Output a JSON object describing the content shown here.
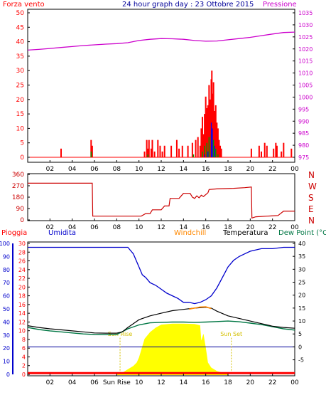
{
  "title": "24 hour graph day : 23 Ottobre 2015",
  "colors": {
    "background": "#ffffff",
    "frame": "#000000",
    "wind": "#ff0000",
    "pressure": "#cc00cc",
    "direction": "#cc0000",
    "rain": "#ff0000",
    "humidity": "#0000cc",
    "windchill": "#ff8800",
    "temperature": "#000000",
    "dewpoint": "#007744",
    "solar": "#ffff00",
    "sun_label": "#d4c000",
    "gust_green": "#009900",
    "gust_blue": "#0000ff"
  },
  "chart_data": [
    {
      "type": "bar",
      "panel": "wind_pressure",
      "left_label": "Forza vento",
      "right_label": "Pressione",
      "x_ticks": [
        "02",
        "04",
        "06",
        "08",
        "10",
        "12",
        "14",
        "16",
        "18",
        "20",
        "22",
        "00"
      ],
      "y_left_ticks": [
        "0",
        "5",
        "10",
        "15",
        "20",
        "25",
        "30",
        "35",
        "40",
        "45",
        "50"
      ],
      "y_left_range": [
        0,
        50
      ],
      "y_right_ticks": [
        "975",
        "980",
        "985",
        "990",
        "995",
        "1000",
        "1005",
        "1010",
        "1015",
        "1020",
        "1025",
        "1030",
        "1035"
      ],
      "y_right_range": [
        975,
        1035
      ],
      "wind_gusts": [
        [
          3.0,
          3
        ],
        [
          5.7,
          6
        ],
        [
          5.8,
          4
        ],
        [
          10.5,
          2
        ],
        [
          10.7,
          6
        ],
        [
          10.8,
          3
        ],
        [
          10.9,
          6
        ],
        [
          11.1,
          3
        ],
        [
          11.2,
          6
        ],
        [
          11.4,
          2
        ],
        [
          11.7,
          6
        ],
        [
          11.9,
          4
        ],
        [
          12.1,
          2
        ],
        [
          12.3,
          4
        ],
        [
          12.9,
          4
        ],
        [
          13.4,
          6
        ],
        [
          13.6,
          3
        ],
        [
          13.9,
          4
        ],
        [
          14.4,
          4
        ],
        [
          14.8,
          5
        ],
        [
          15.1,
          6
        ],
        [
          15.3,
          7
        ],
        [
          15.5,
          4
        ],
        [
          15.6,
          10
        ],
        [
          15.7,
          14
        ],
        [
          15.8,
          8
        ],
        [
          15.9,
          15
        ],
        [
          16.0,
          21
        ],
        [
          16.1,
          17
        ],
        [
          16.2,
          18
        ],
        [
          16.3,
          25
        ],
        [
          16.4,
          20
        ],
        [
          16.5,
          27
        ],
        [
          16.55,
          30
        ],
        [
          16.6,
          22
        ],
        [
          16.7,
          26
        ],
        [
          16.8,
          16
        ],
        [
          16.9,
          18
        ],
        [
          17.0,
          12
        ],
        [
          17.1,
          10
        ],
        [
          17.2,
          6
        ],
        [
          17.3,
          4
        ],
        [
          17.4,
          3
        ],
        [
          20.1,
          3
        ],
        [
          20.8,
          4
        ],
        [
          21.0,
          2
        ],
        [
          21.3,
          5
        ],
        [
          21.5,
          4
        ],
        [
          22.1,
          3
        ],
        [
          22.3,
          5
        ],
        [
          22.4,
          4
        ],
        [
          22.8,
          2
        ],
        [
          23.0,
          5
        ],
        [
          23.7,
          3
        ]
      ],
      "wind_mean": [
        [
          5.7,
          2
        ],
        [
          10.8,
          1
        ],
        [
          14.9,
          1
        ],
        [
          15.7,
          2
        ],
        [
          15.9,
          4
        ],
        [
          16.1,
          5
        ],
        [
          16.3,
          7
        ],
        [
          16.5,
          8
        ],
        [
          16.7,
          6
        ],
        [
          16.9,
          3
        ],
        [
          17.1,
          1
        ]
      ],
      "wind_mean_blue": [
        [
          15.9,
          1
        ],
        [
          16.2,
          2
        ],
        [
          16.5,
          12
        ],
        [
          16.6,
          10
        ],
        [
          16.8,
          4
        ]
      ],
      "pressure": [
        [
          0,
          1019.5
        ],
        [
          1,
          1019.8
        ],
        [
          2,
          1020.2
        ],
        [
          3,
          1020.6
        ],
        [
          4,
          1021.0
        ],
        [
          5,
          1021.4
        ],
        [
          6,
          1021.7
        ],
        [
          7,
          1022.0
        ],
        [
          8,
          1022.2
        ],
        [
          9,
          1022.6
        ],
        [
          10,
          1023.5
        ],
        [
          11,
          1024.0
        ],
        [
          12,
          1024.3
        ],
        [
          13,
          1024.2
        ],
        [
          14,
          1024.0
        ],
        [
          15,
          1023.5
        ],
        [
          16,
          1023.2
        ],
        [
          17,
          1023.3
        ],
        [
          18,
          1023.8
        ],
        [
          19,
          1024.3
        ],
        [
          20,
          1024.8
        ],
        [
          21,
          1025.5
        ],
        [
          22,
          1026.2
        ],
        [
          23,
          1026.8
        ],
        [
          24,
          1027.0
        ]
      ]
    },
    {
      "type": "line",
      "panel": "wind_direction",
      "x_ticks": [
        "02",
        "04",
        "06",
        "08",
        "10",
        "12",
        "14",
        "16",
        "18",
        "20",
        "22",
        "00"
      ],
      "y_ticks": [
        "0",
        "90",
        "180",
        "270",
        "360"
      ],
      "y_range": [
        0,
        360
      ],
      "compass_labels": [
        "N",
        "W",
        "S",
        "E",
        "N"
      ],
      "direction": [
        [
          0,
          290
        ],
        [
          5.8,
          290
        ],
        [
          5.85,
          30
        ],
        [
          10.2,
          30
        ],
        [
          10.6,
          50
        ],
        [
          11.0,
          50
        ],
        [
          11.2,
          80
        ],
        [
          12.0,
          80
        ],
        [
          12.3,
          110
        ],
        [
          12.7,
          110
        ],
        [
          12.8,
          170
        ],
        [
          13.6,
          170
        ],
        [
          13.8,
          190
        ],
        [
          14.0,
          210
        ],
        [
          14.6,
          210
        ],
        [
          14.8,
          180
        ],
        [
          15.0,
          170
        ],
        [
          15.2,
          190
        ],
        [
          15.4,
          175
        ],
        [
          15.6,
          195
        ],
        [
          15.8,
          185
        ],
        [
          16.0,
          200
        ],
        [
          16.2,
          215
        ],
        [
          16.3,
          240
        ],
        [
          17.0,
          245
        ],
        [
          18.5,
          250
        ],
        [
          19.5,
          255
        ],
        [
          20.1,
          260
        ],
        [
          20.15,
          15
        ],
        [
          20.5,
          25
        ],
        [
          21.5,
          30
        ],
        [
          22.5,
          35
        ],
        [
          23.0,
          70
        ],
        [
          24,
          70
        ]
      ]
    },
    {
      "type": "line",
      "panel": "temperature_humidity",
      "labels": [
        "Pioggia",
        "Umidita",
        "Windchill",
        "Temperatura",
        "Dew Point (°C"
      ],
      "x_ticks": [
        "02",
        "04",
        "06",
        "Sun Rise",
        "10",
        "12",
        "14",
        "16",
        "18",
        "20",
        "22",
        "00"
      ],
      "y_humidity_ticks": [
        "0",
        "10",
        "20",
        "30",
        "40",
        "50",
        "60",
        "70",
        "80",
        "90",
        "100"
      ],
      "y_humidity_range": [
        0,
        100
      ],
      "y_rain_ticks": [
        "0",
        "2",
        "4",
        "6",
        "8",
        "10",
        "12",
        "14",
        "16",
        "18",
        "20",
        "22",
        "24",
        "26",
        "28",
        "30"
      ],
      "y_rain_range": [
        0,
        30
      ],
      "y_temp_ticks": [
        "-5",
        "0",
        "5",
        "10",
        "15",
        "20",
        "25",
        "30",
        "35",
        "40"
      ],
      "y_temp_range": [
        -5,
        40
      ],
      "sun_rise_label": "Sun Rise",
      "sun_set_label": "Sun Set",
      "sun_rise_hour": 8.3,
      "sun_set_hour": 18.3,
      "humidity": [
        [
          0,
          97
        ],
        [
          1,
          97
        ],
        [
          2,
          97
        ],
        [
          3,
          97
        ],
        [
          4,
          97
        ],
        [
          5,
          97
        ],
        [
          6,
          97
        ],
        [
          7,
          97
        ],
        [
          8,
          97
        ],
        [
          9,
          97
        ],
        [
          9.5,
          92
        ],
        [
          10,
          82
        ],
        [
          10.3,
          76
        ],
        [
          10.6,
          74
        ],
        [
          11,
          70
        ],
        [
          11.5,
          68
        ],
        [
          12,
          65
        ],
        [
          12.5,
          62
        ],
        [
          13,
          60
        ],
        [
          13.5,
          58
        ],
        [
          14,
          55
        ],
        [
          14.5,
          55
        ],
        [
          15,
          54
        ],
        [
          15.5,
          55
        ],
        [
          16,
          57
        ],
        [
          16.5,
          60
        ],
        [
          17,
          66
        ],
        [
          17.5,
          74
        ],
        [
          18,
          82
        ],
        [
          18.5,
          87
        ],
        [
          19,
          90
        ],
        [
          19.5,
          92
        ],
        [
          20,
          94
        ],
        [
          21,
          96
        ],
        [
          22,
          96
        ],
        [
          23,
          97
        ],
        [
          24,
          97
        ]
      ],
      "temperature": [
        [
          0,
          8.2
        ],
        [
          1,
          7.5
        ],
        [
          2,
          7.0
        ],
        [
          3,
          6.6
        ],
        [
          4,
          6.2
        ],
        [
          5,
          5.8
        ],
        [
          6,
          5.4
        ],
        [
          7,
          5.3
        ],
        [
          8,
          5.3
        ],
        [
          8.5,
          5.8
        ],
        [
          9,
          7.5
        ],
        [
          9.5,
          9.0
        ],
        [
          10,
          10.5
        ],
        [
          11,
          12.0
        ],
        [
          12,
          13.0
        ],
        [
          13,
          14.0
        ],
        [
          14,
          14.5
        ],
        [
          15,
          15.0
        ],
        [
          16,
          15.3
        ],
        [
          16.5,
          15.0
        ],
        [
          17,
          13.8
        ],
        [
          18,
          12.0
        ],
        [
          19,
          11.0
        ],
        [
          20,
          10.0
        ],
        [
          20.5,
          9.5
        ],
        [
          21,
          9.0
        ],
        [
          22,
          8.0
        ],
        [
          23,
          7.5
        ],
        [
          24,
          7.2
        ]
      ],
      "dewpoint": [
        [
          0,
          7.5
        ],
        [
          1,
          6.7
        ],
        [
          2,
          6.2
        ],
        [
          3,
          5.8
        ],
        [
          4,
          5.4
        ],
        [
          5,
          5.0
        ],
        [
          6,
          4.8
        ],
        [
          7,
          4.7
        ],
        [
          8,
          4.8
        ],
        [
          9,
          7.0
        ],
        [
          10,
          8.5
        ],
        [
          11,
          9.3
        ],
        [
          12,
          9.5
        ],
        [
          13,
          9.6
        ],
        [
          14,
          9.6
        ],
        [
          15,
          9.5
        ],
        [
          16,
          9.6
        ],
        [
          17,
          9.8
        ],
        [
          18,
          10.0
        ],
        [
          19,
          9.7
        ],
        [
          20,
          9.2
        ],
        [
          21,
          8.6
        ],
        [
          22,
          7.8
        ],
        [
          23,
          7.0
        ],
        [
          24,
          6.5
        ]
      ],
      "windchill": [
        [
          14.5,
          14.6
        ],
        [
          15,
          15.0
        ],
        [
          15.5,
          15.4
        ],
        [
          16,
          15.5
        ],
        [
          16.5,
          14.8
        ]
      ],
      "rain": [
        [
          0,
          0.3
        ],
        [
          24,
          0.3
        ]
      ],
      "solar": [
        [
          8.0,
          0
        ],
        [
          8.5,
          0.5
        ],
        [
          9,
          1.5
        ],
        [
          9.5,
          2.5
        ],
        [
          9.8,
          3.5
        ],
        [
          10,
          5
        ],
        [
          10.5,
          10.5
        ],
        [
          11,
          12.5
        ],
        [
          11.5,
          13.8
        ],
        [
          12,
          14.7
        ],
        [
          13,
          15.0
        ],
        [
          14,
          15.0
        ],
        [
          15,
          14.9
        ],
        [
          15.5,
          14.5
        ],
        [
          15.6,
          10
        ],
        [
          15.8,
          12
        ],
        [
          16,
          8
        ],
        [
          16.2,
          3.5
        ],
        [
          16.5,
          2
        ],
        [
          17,
          1.0
        ],
        [
          17.5,
          0.5
        ],
        [
          18.0,
          0
        ]
      ]
    }
  ]
}
